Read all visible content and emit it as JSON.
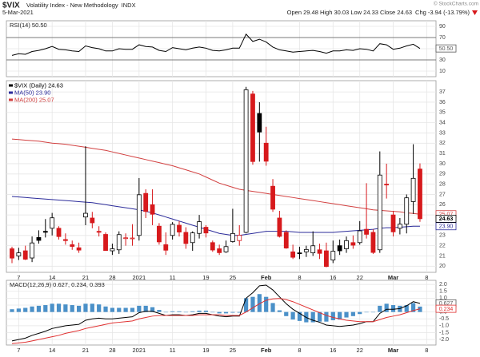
{
  "header": {
    "symbol": "$VIX",
    "name": "Volatility Index - New Methodology",
    "exchange": "INDX",
    "date": "5-Mar-2021",
    "ohlc": "Open 29.48 High 30.03 Low 24.33 Close 24.63",
    "change": "Chg -3.94 (-13.79%)",
    "credit": "© StockCharts.com"
  },
  "chart_data": [
    {
      "type": "line",
      "title": "RSI(14) 50.50",
      "ylim": [
        0,
        100
      ],
      "yticks": [
        90,
        70,
        50,
        30,
        10
      ],
      "hlines": [
        70,
        30
      ],
      "grid": true,
      "series": [
        {
          "style": "line",
          "color": "#000000",
          "tag": "50.50",
          "values": [
            38,
            41,
            40,
            45,
            47,
            50,
            54,
            49,
            48,
            46,
            45,
            55,
            52,
            50,
            46,
            46,
            50,
            49,
            49,
            57,
            54,
            53,
            47,
            45,
            52,
            50,
            48,
            51,
            53,
            51,
            47,
            46,
            48,
            51,
            51,
            76,
            63,
            67,
            62,
            53,
            48,
            46,
            44,
            45,
            46,
            47,
            45,
            42,
            46,
            46,
            48,
            47,
            50,
            49,
            46,
            59,
            57,
            49,
            51,
            55,
            58,
            50.5
          ]
        }
      ]
    },
    {
      "type": "candlestick",
      "name": "$VIX (Daily) 24.63",
      "tag": "24.63",
      "up_color": "#000000",
      "down_color": "#d7191c",
      "ylim": [
        19.4,
        38.1
      ],
      "yticks": [
        20,
        21,
        22,
        23,
        24,
        25,
        26,
        27,
        28,
        29,
        30,
        31,
        32,
        33,
        34,
        35,
        36,
        37
      ],
      "grid": true,
      "categories": [
        null,
        "7",
        null,
        null,
        null,
        null,
        "14",
        null,
        null,
        null,
        null,
        "21",
        null,
        null,
        null,
        "28",
        null,
        null,
        null,
        "2021",
        null,
        null,
        null,
        null,
        "11",
        null,
        null,
        null,
        null,
        "19",
        null,
        null,
        null,
        "25",
        null,
        null,
        null,
        null,
        "Feb",
        null,
        null,
        null,
        null,
        "8",
        null,
        null,
        null,
        null,
        "16",
        null,
        null,
        null,
        "22",
        null,
        null,
        null,
        null,
        "Mar",
        null,
        null,
        null,
        null,
        "8"
      ],
      "open": [
        21.7,
        21.0,
        21.5,
        20.8,
        22.8,
        23.4,
        23.7,
        23.7,
        22.6,
        22.1,
        21.8,
        24.8,
        24.7,
        23.4,
        23.1,
        21.5,
        21.6,
        22.7,
        22.7,
        23.0,
        27.1,
        26.0,
        23.9,
        22.1,
        23.0,
        24.0,
        23.3,
        22.3,
        23.2,
        23.8,
        22.3,
        21.7,
        21.4,
        22.4,
        22.5,
        23.3,
        36.8,
        34.9,
        32.0,
        27.8,
        24.7,
        23.3,
        21.4,
        21.3,
        21.4,
        21.3,
        21.6,
        21.5,
        20.6,
        22.0,
        21.7,
        22.3,
        22.3,
        23.6,
        23.3,
        21.6,
        28.0,
        25.0,
        23.7,
        24.1,
        26.3,
        29.48,
        null
      ],
      "high": [
        21.9,
        21.8,
        22.0,
        22.9,
        23.5,
        24.6,
        25.2,
        23.9,
        23.2,
        22.5,
        22.3,
        31.7,
        25.3,
        23.9,
        23.3,
        22.2,
        23.4,
        23.2,
        24.1,
        28.6,
        27.5,
        27.5,
        24.2,
        23.3,
        24.3,
        24.4,
        23.8,
        23.4,
        25.0,
        24.0,
        22.5,
        22.1,
        22.5,
        25.6,
        24.0,
        37.5,
        37.1,
        36.0,
        33.6,
        28.5,
        25.4,
        23.5,
        22.1,
        21.9,
        22.0,
        23.4,
        22.2,
        22.3,
        22.5,
        22.6,
        22.9,
        23.0,
        24.4,
        28.1,
        23.6,
        31.2,
        30.0,
        25.4,
        24.7,
        27.0,
        31.9,
        30.03,
        null
      ],
      "low": [
        20.3,
        20.6,
        20.6,
        20.4,
        22.2,
        22.8,
        23.0,
        22.6,
        22.1,
        21.6,
        21.3,
        24.0,
        23.7,
        22.9,
        21.5,
        21.1,
        21.2,
        22.0,
        22.0,
        22.5,
        24.7,
        24.0,
        22.1,
        21.1,
        22.6,
        22.9,
        21.7,
        21.5,
        22.7,
        22.8,
        21.4,
        21.1,
        21.3,
        22.3,
        22.0,
        23.2,
        29.9,
        30.2,
        29.8,
        25.3,
        22.8,
        21.7,
        20.7,
        20.7,
        20.9,
        21.0,
        20.7,
        19.9,
        20.3,
        21.1,
        21.3,
        21.7,
        22.1,
        22.7,
        21.2,
        21.3,
        26.6,
        22.9,
        23.1,
        23.2,
        25.1,
        24.33,
        null
      ],
      "close": [
        20.79,
        21.3,
        20.68,
        22.27,
        22.52,
        23.31,
        24.72,
        22.89,
        22.5,
        21.93,
        21.57,
        25.16,
        24.23,
        23.31,
        21.53,
        21.7,
        23.08,
        22.77,
        22.75,
        26.97,
        25.34,
        25.07,
        22.37,
        21.56,
        24.08,
        23.33,
        22.21,
        23.25,
        24.34,
        23.24,
        21.58,
        21.32,
        21.91,
        23.19,
        23.02,
        37.21,
        30.21,
        33.09,
        30.24,
        25.56,
        22.91,
        21.77,
        20.87,
        21.24,
        21.63,
        21.99,
        21.25,
        19.97,
        21.46,
        21.5,
        22.49,
        22.05,
        23.45,
        23.11,
        21.34,
        28.89,
        27.95,
        23.35,
        24.1,
        26.67,
        28.57,
        24.63,
        null
      ],
      "series": [
        {
          "name": "MA(50) 23.90",
          "style": "line",
          "color": "#2b2b9a",
          "tag": "23.90",
          "values": [
            26.8,
            26.75,
            26.7,
            26.65,
            26.6,
            26.55,
            26.5,
            26.45,
            26.4,
            26.35,
            26.3,
            26.25,
            26.2,
            26.1,
            26.0,
            25.9,
            25.8,
            25.7,
            25.6,
            25.5,
            25.35,
            25.2,
            25.0,
            24.8,
            24.6,
            24.4,
            24.2,
            24.0,
            23.8,
            23.6,
            23.4,
            23.2,
            23.1,
            23.0,
            23.0,
            23.1,
            23.2,
            23.3,
            23.4,
            23.4,
            23.4,
            23.4,
            23.35,
            23.3,
            23.3,
            23.3,
            23.3,
            23.3,
            23.3,
            23.35,
            23.4,
            23.45,
            23.5,
            23.55,
            23.6,
            23.7,
            23.75,
            23.75,
            23.8,
            23.85,
            23.9,
            23.9,
            null
          ]
        },
        {
          "name": "MA(200) 25.07",
          "style": "line",
          "color": "#d24040",
          "tag": "25.07",
          "values": [
            32.4,
            32.35,
            32.3,
            32.25,
            32.2,
            32.1,
            32.0,
            31.95,
            31.9,
            31.8,
            31.7,
            31.6,
            31.5,
            31.4,
            31.3,
            31.15,
            31.0,
            30.85,
            30.7,
            30.55,
            30.4,
            30.25,
            30.1,
            29.95,
            29.8,
            29.6,
            29.4,
            29.2,
            29.0,
            28.7,
            28.4,
            28.1,
            27.9,
            27.7,
            27.5,
            27.4,
            27.3,
            27.2,
            27.1,
            27.0,
            26.9,
            26.8,
            26.7,
            26.6,
            26.5,
            26.4,
            26.3,
            26.2,
            26.1,
            26.0,
            25.9,
            25.8,
            25.7,
            25.6,
            25.5,
            25.45,
            25.4,
            25.35,
            25.3,
            25.2,
            25.15,
            25.07,
            null
          ]
        }
      ]
    },
    {
      "type": "macd",
      "title": "MACD(12,26,9) 0.627, 0.234, 0.393",
      "ylim": [
        -2.4,
        2.3
      ],
      "grid": true,
      "yticks": [
        {
          "value": 2,
          "label": "2.0"
        },
        1.5,
        {
          "value": 1,
          "label": "1.0"
        },
        0.5,
        {
          "value": 0,
          "label": "0.0"
        },
        -0.5,
        {
          "value": -1,
          "label": "-1.0"
        },
        -1.5,
        {
          "value": -2,
          "label": "-2.0"
        }
      ],
      "categories": [
        null,
        "7",
        null,
        null,
        null,
        null,
        "14",
        null,
        null,
        null,
        null,
        "21",
        null,
        null,
        null,
        "28",
        null,
        null,
        null,
        "2021",
        null,
        null,
        null,
        null,
        "11",
        null,
        null,
        null,
        null,
        "19",
        null,
        null,
        null,
        "25",
        null,
        null,
        null,
        null,
        "Feb",
        null,
        null,
        null,
        null,
        "8",
        null,
        null,
        null,
        null,
        "16",
        null,
        null,
        null,
        "22",
        null,
        null,
        null,
        null,
        "Mar",
        null,
        null,
        null,
        null,
        "8"
      ],
      "series": [
        {
          "style": "bar",
          "color": "#4a90c8",
          "values": [
            0.2,
            0.25,
            0.3,
            0.4,
            0.45,
            0.5,
            0.6,
            0.6,
            0.55,
            0.5,
            0.45,
            0.6,
            0.6,
            0.55,
            0.4,
            0.3,
            0.3,
            0.3,
            0.3,
            0.45,
            0.45,
            0.35,
            0.15,
            0.0,
            0.05,
            0.05,
            0.0,
            0.05,
            0.1,
            0.1,
            0.0,
            -0.1,
            -0.1,
            -0.05,
            -0.05,
            1.0,
            1.1,
            1.3,
            1.1,
            0.65,
            0.12,
            -0.3,
            -0.55,
            -0.65,
            -0.75,
            -0.75,
            -0.7,
            -0.7,
            -0.6,
            -0.55,
            -0.4,
            -0.3,
            -0.15,
            0.0,
            0.0,
            0.45,
            0.6,
            0.5,
            0.45,
            0.5,
            0.65,
            0.393,
            null
          ]
        },
        {
          "style": "line",
          "color": "#000000",
          "tag": "0.627",
          "values": [
            -2.1,
            -2.0,
            -1.9,
            -1.7,
            -1.55,
            -1.4,
            -1.2,
            -1.1,
            -1.0,
            -0.95,
            -0.9,
            -0.6,
            -0.5,
            -0.45,
            -0.5,
            -0.5,
            -0.45,
            -0.4,
            -0.35,
            -0.05,
            0.05,
            0.05,
            -0.1,
            -0.25,
            -0.2,
            -0.2,
            -0.25,
            -0.2,
            -0.1,
            -0.1,
            -0.2,
            -0.3,
            -0.35,
            -0.3,
            -0.3,
            1.0,
            1.4,
            1.9,
            1.95,
            1.6,
            1.1,
            0.6,
            0.2,
            -0.1,
            -0.4,
            -0.6,
            -0.75,
            -0.95,
            -1.0,
            -1.05,
            -1.0,
            -0.95,
            -0.85,
            -0.7,
            -0.7,
            -0.1,
            0.2,
            0.2,
            0.25,
            0.45,
            0.75,
            0.627,
            null
          ]
        },
        {
          "style": "line",
          "color": "#e03030",
          "tag": "0.234",
          "values": [
            -2.3,
            -2.25,
            -2.2,
            -2.1,
            -2.0,
            -1.9,
            -1.8,
            -1.7,
            -1.55,
            -1.45,
            -1.35,
            -1.2,
            -1.1,
            -1.0,
            -0.9,
            -0.8,
            -0.75,
            -0.7,
            -0.65,
            -0.5,
            -0.4,
            -0.3,
            -0.25,
            -0.25,
            -0.25,
            -0.25,
            -0.25,
            -0.25,
            -0.2,
            -0.2,
            -0.2,
            -0.2,
            -0.25,
            -0.25,
            -0.25,
            0.0,
            0.3,
            0.6,
            0.85,
            0.95,
            0.98,
            0.9,
            0.75,
            0.55,
            0.35,
            0.15,
            -0.05,
            -0.25,
            -0.4,
            -0.5,
            -0.6,
            -0.65,
            -0.7,
            -0.7,
            -0.7,
            -0.55,
            -0.4,
            -0.3,
            -0.2,
            -0.05,
            0.1,
            0.234,
            null
          ]
        }
      ]
    }
  ]
}
